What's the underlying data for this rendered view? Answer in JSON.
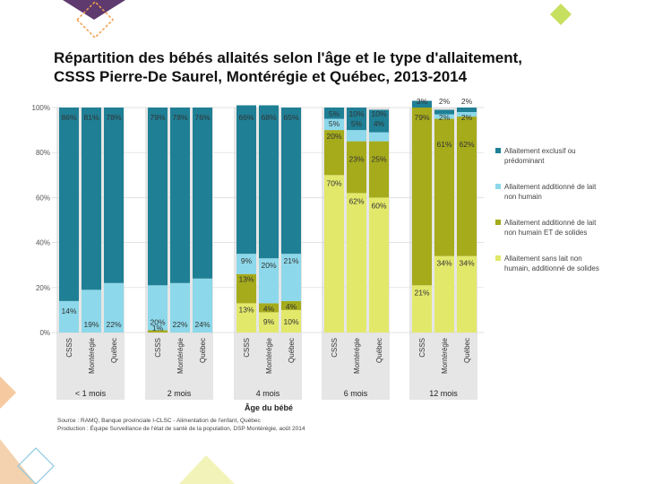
{
  "title_line1": "Répartition des bébés allaités selon l'âge et le type d'allaitement,",
  "title_line2": "CSSS Pierre-De Saurel, Montérégie et Québec, 2013-2014",
  "source_line1": "Source : RAMQ, Banque provinciale I-CLSC - Alimentation de l'enfant, Québec",
  "source_line2": "Production : Équipe Surveillance de l'état de santé de la population, DSP Montérégie, août 2014",
  "chart_data": {
    "type": "bar",
    "stacked": true,
    "xlabel": "Âge du bébé",
    "ylim": [
      0,
      100
    ],
    "yticks": [
      "0%",
      "20%",
      "40%",
      "60%",
      "80%",
      "100%"
    ],
    "groups": [
      "< 1 mois",
      "2 mois",
      "4 mois",
      "6 mois",
      "12 mois"
    ],
    "categories": [
      "CSSS",
      "Montérégie",
      "Québec"
    ],
    "colors": {
      "exclusif": "#1f7f95",
      "lait_non_humain": "#8dd8ea",
      "lait_et_solides": "#a5ab1b",
      "sans_lait": "#e2e86a",
      "panel_bg": "#e6e6e6"
    },
    "series": [
      {
        "key": "exclusif",
        "name": "Allaitement exclusif ou prédominant",
        "values": [
          [
            86,
            81,
            78
          ],
          [
            79,
            78,
            76
          ],
          [
            66,
            68,
            65
          ],
          [
            5,
            10,
            10
          ],
          [
            3,
            2,
            2
          ]
        ],
        "labels": [
          [
            "86%",
            "81%",
            "78%"
          ],
          [
            "79%",
            "78%",
            "76%"
          ],
          [
            "66%",
            "68%",
            "65%"
          ],
          [
            "5%",
            "10%",
            "10%"
          ],
          [
            "3%",
            "2%",
            "2%"
          ]
        ]
      },
      {
        "key": "lait_non_humain",
        "name": "Allaitement additionné de lait non humain",
        "values": [
          [
            14,
            19,
            22
          ],
          [
            20,
            22,
            24
          ],
          [
            9,
            20,
            21
          ],
          [
            5,
            5,
            4
          ],
          [
            0,
            2,
            2
          ]
        ],
        "labels": [
          [
            "14%",
            "19%",
            "22%"
          ],
          [
            "20%",
            "22%",
            "24%"
          ],
          [
            "9%",
            "20%",
            "21%"
          ],
          [
            "5%",
            "5%",
            "4%"
          ],
          [
            "",
            "2%",
            "2%"
          ]
        ]
      },
      {
        "key": "lait_et_solides",
        "name": "Allaitement additionné de lait non humain ET de solides",
        "values": [
          [
            0,
            0,
            0
          ],
          [
            1,
            0,
            0
          ],
          [
            13,
            4,
            4
          ],
          [
            20,
            23,
            25
          ],
          [
            79,
            61,
            62
          ]
        ],
        "labels": [
          [
            "",
            "",
            ""
          ],
          [
            "1%",
            "",
            ""
          ],
          [
            "13%",
            "4%",
            "4%"
          ],
          [
            "20%",
            "23%",
            "25%"
          ],
          [
            "79%",
            "61%",
            "62%"
          ]
        ]
      },
      {
        "key": "sans_lait",
        "name": "Allaitement sans lait non humain, additionné de solides",
        "values": [
          [
            0,
            0,
            0
          ],
          [
            0,
            0,
            0
          ],
          [
            13,
            9,
            10
          ],
          [
            70,
            62,
            60
          ],
          [
            21,
            34,
            34
          ]
        ],
        "labels": [
          [
            "",
            "",
            ""
          ],
          [
            "",
            "",
            ""
          ],
          [
            "13%",
            "9%",
            "10%"
          ],
          [
            "70%",
            "62%",
            "60%"
          ],
          [
            "21%",
            "34%",
            "34%"
          ]
        ]
      }
    ],
    "legend_position": "right"
  }
}
